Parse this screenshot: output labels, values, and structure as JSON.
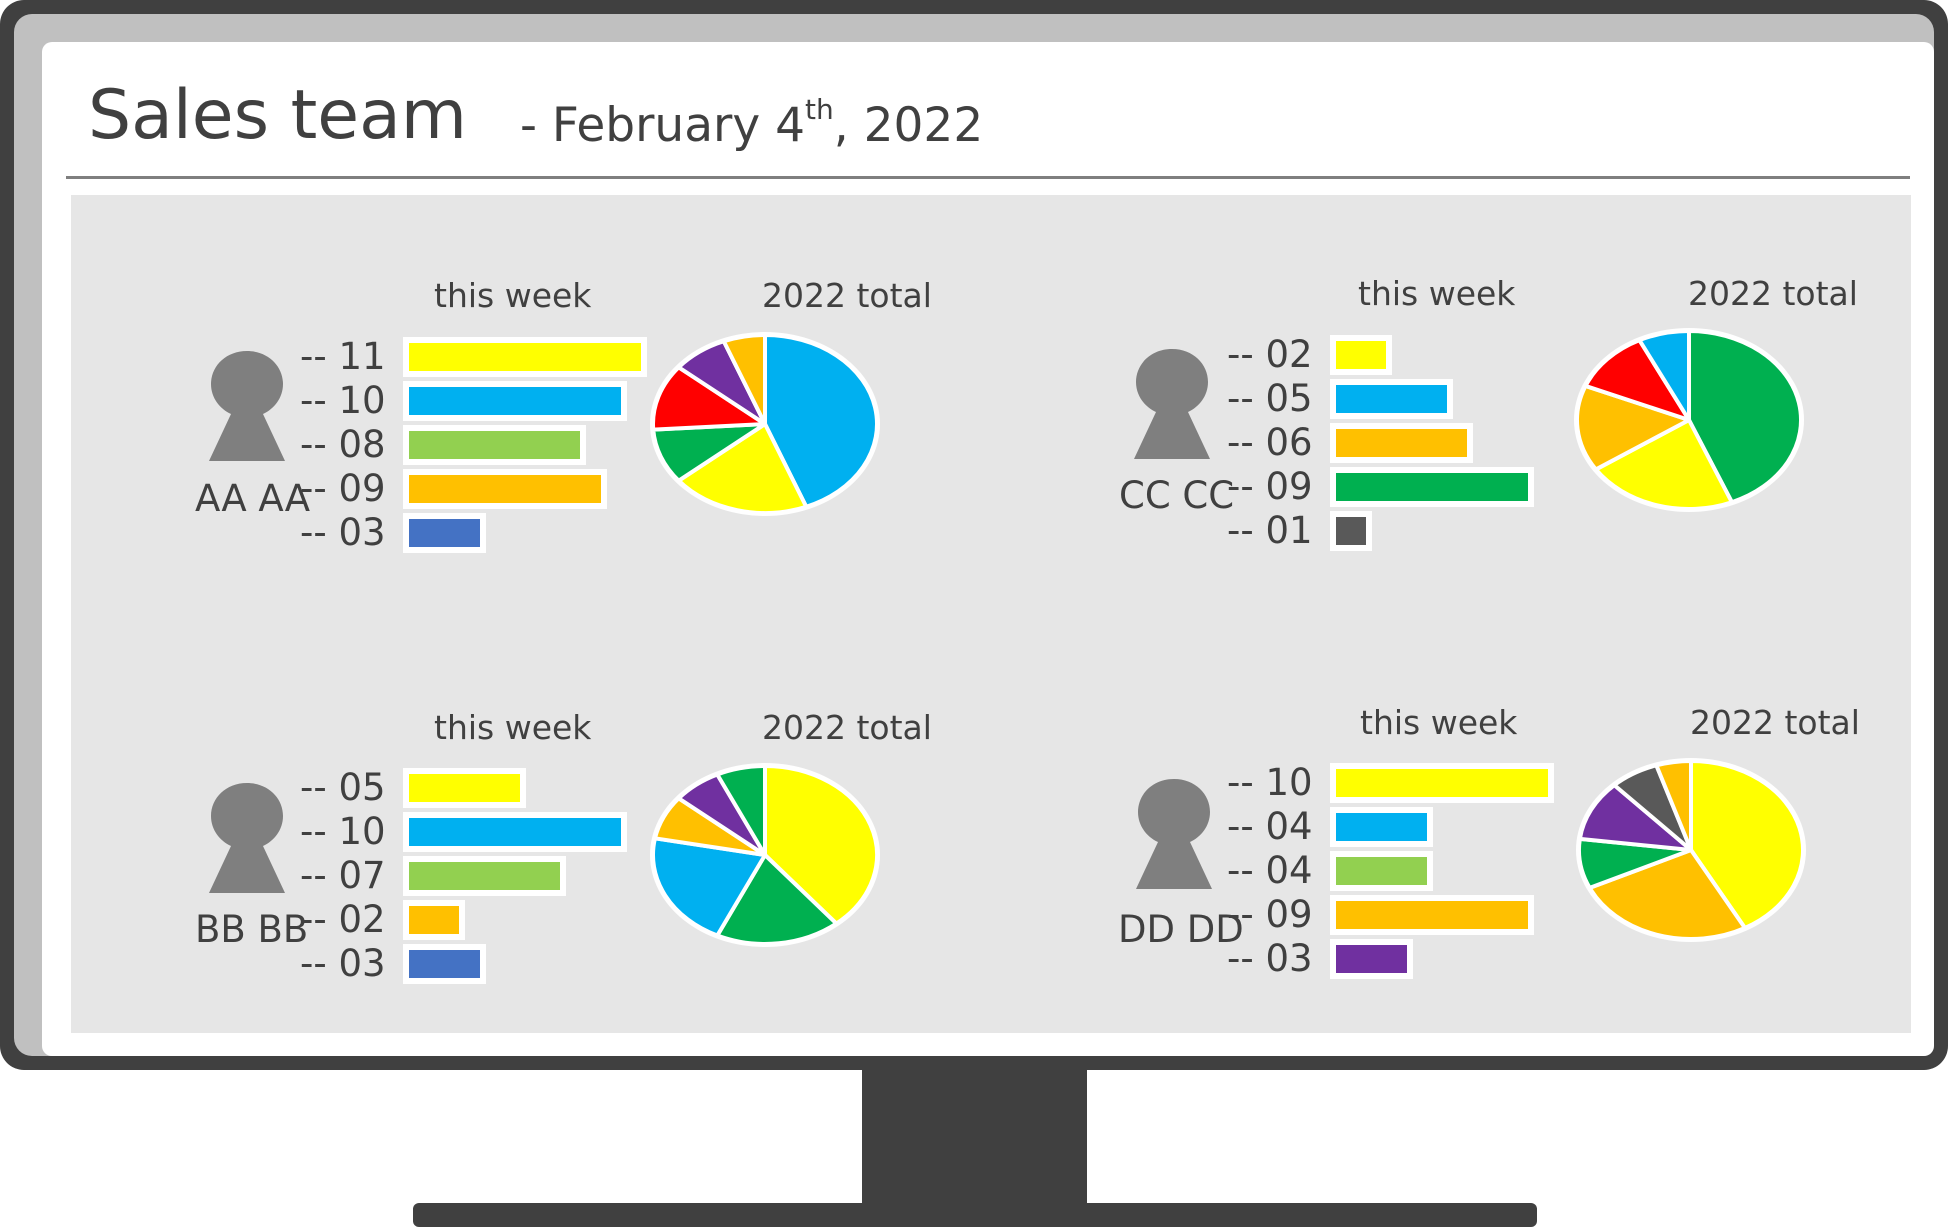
{
  "header": {
    "title": "Sales team",
    "date_prefix": "- February 4",
    "date_suffix_sup": "th",
    "date_year": ", 2022"
  },
  "labels": {
    "this_week": "this week",
    "total": "2022 total"
  },
  "colors": {
    "yellow": "#ffff00",
    "blue": "#00b0f0",
    "green_light": "#92d050",
    "orange": "#ffc000",
    "royal": "#4472c4",
    "green": "#00b050",
    "dark_gray": "#595959",
    "purple": "#7030a0",
    "red": "#ff0000",
    "avatar": "#7f7f7f"
  },
  "chart_data": [
    {
      "type": "bar",
      "person": "AA AA",
      "title": "this week",
      "categories": [
        "-- 11",
        "-- 10",
        "-- 08",
        "-- 09",
        "-- 03"
      ],
      "values": [
        11,
        10,
        8,
        9,
        3
      ],
      "colors": [
        "#ffff00",
        "#00b0f0",
        "#92d050",
        "#ffc000",
        "#4472c4"
      ]
    },
    {
      "type": "pie",
      "person": "AA AA",
      "title": "2022 total",
      "values": [
        44,
        20,
        10,
        12,
        8,
        6
      ],
      "colors": [
        "#00b0f0",
        "#ffff00",
        "#00b050",
        "#ff0000",
        "#7030a0",
        "#ffc000"
      ]
    },
    {
      "type": "bar",
      "person": "CC CC",
      "title": "this week",
      "categories": [
        "-- 02",
        "-- 05",
        "-- 06",
        "-- 09",
        "-- 01"
      ],
      "values": [
        2,
        5,
        6,
        9,
        1
      ],
      "colors": [
        "#ffff00",
        "#00b0f0",
        "#ffc000",
        "#00b050",
        "#595959"
      ]
    },
    {
      "type": "pie",
      "person": "CC CC",
      "title": "2022 total",
      "values": [
        42,
        21,
        15,
        11,
        7
      ],
      "colors": [
        "#00b050",
        "#ffff00",
        "#ffc000",
        "#ff0000",
        "#00b0f0"
      ]
    },
    {
      "type": "bar",
      "person": "BB BB",
      "title": "this week",
      "categories": [
        "-- 05",
        "-- 10",
        "-- 07",
        "-- 02",
        "-- 03"
      ],
      "values": [
        5,
        10,
        7,
        2,
        3
      ],
      "colors": [
        "#ffff00",
        "#00b0f0",
        "#92d050",
        "#ffc000",
        "#4472c4"
      ]
    },
    {
      "type": "pie",
      "person": "BB BB",
      "title": "2022 total",
      "values": [
        39,
        18,
        21,
        8,
        7,
        7
      ],
      "colors": [
        "#ffff00",
        "#00b050",
        "#00b0f0",
        "#ffc000",
        "#7030a0",
        "#00b050"
      ]
    },
    {
      "type": "bar",
      "person": "DD DD",
      "title": "this week",
      "categories": [
        "-- 10",
        "-- 04",
        "-- 04",
        "-- 09",
        "-- 03"
      ],
      "values": [
        10,
        4,
        4,
        9,
        3
      ],
      "colors": [
        "#ffff00",
        "#00b0f0",
        "#92d050",
        "#ffc000",
        "#7030a0"
      ]
    },
    {
      "type": "pie",
      "person": "DD DD",
      "title": "2022 total",
      "values": [
        42,
        26,
        9,
        11,
        7,
        5
      ],
      "colors": [
        "#ffff00",
        "#ffc000",
        "#00b050",
        "#7030a0",
        "#595959",
        "#ffc000"
      ]
    }
  ]
}
